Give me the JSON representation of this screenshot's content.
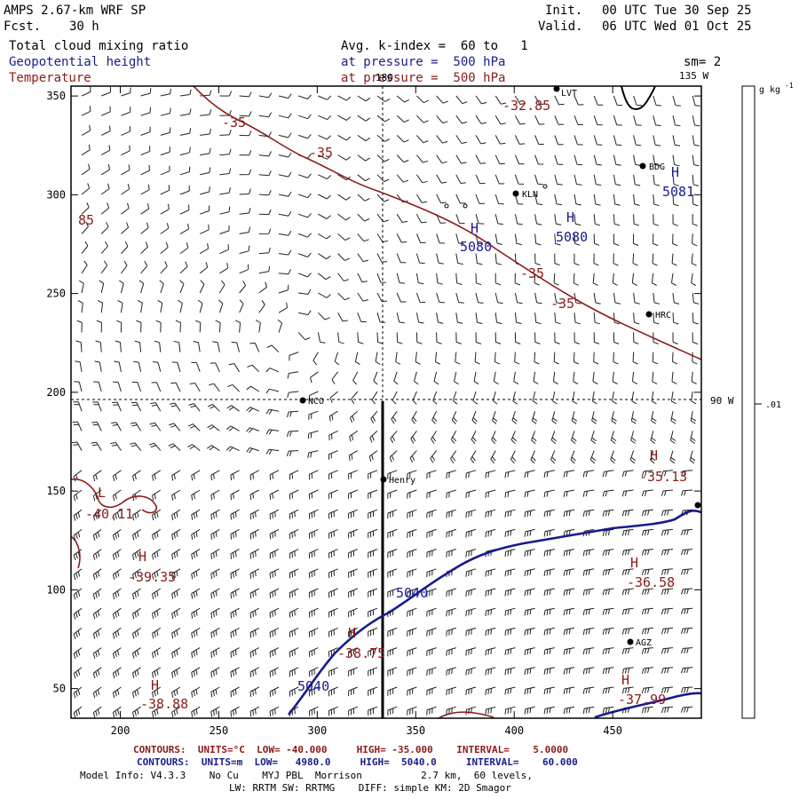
{
  "header": {
    "model_name": "AMPS 2.67-km WRF SP",
    "forecast_label": "Fcst.",
    "forecast_hours": "30 h",
    "init_label": "Init.",
    "init_time": "00 UTC Tue 30 Sep 25",
    "valid_label": "Valid.",
    "valid_time": "06 UTC Wed 01 Oct 25"
  },
  "fields": {
    "field1": "Total cloud mixing ratio",
    "field2": "Geopotential height",
    "field3": "Temperature",
    "avg_line": "Avg. k-index =  60 to   1",
    "pressure1": "at pressure =  500 hPa",
    "pressure2": "at pressure =  500 hPa",
    "smoothing": "sm= 2"
  },
  "axes": {
    "x_ticks": [
      "200",
      "250",
      "300",
      "350",
      "400",
      "450"
    ],
    "y_ticks": [
      "350",
      "300",
      "250",
      "200",
      "150",
      "100",
      "50"
    ]
  },
  "map_labels": {
    "lon_180": "180",
    "lon_135w": "135 W",
    "lon_90w": "90 W"
  },
  "stations": [
    {
      "name": "LVT"
    },
    {
      "name": "BDG"
    },
    {
      "name": "KLN"
    },
    {
      "name": "HRC"
    },
    {
      "name": "NCO"
    },
    {
      "name": "Henry"
    },
    {
      "name": "AGZ"
    }
  ],
  "height_labels": [
    {
      "marker": "H",
      "value": "5081"
    },
    {
      "marker": "H",
      "value": "5080"
    },
    {
      "marker": "H",
      "value": "5080"
    },
    {
      "contour": "5040"
    },
    {
      "contour": "5040"
    }
  ],
  "temp_labels": [
    {
      "value": "-32.85"
    },
    {
      "value": "-35"
    },
    {
      "value": "-35"
    },
    {
      "value": "-35"
    },
    {
      "value": "-35"
    },
    {
      "value": "85"
    },
    {
      "marker": "L",
      "value": "-40.11"
    },
    {
      "marker": "H",
      "value": "-39.35"
    },
    {
      "marker": "H",
      "value": "-38.75"
    },
    {
      "marker": "H",
      "value": "-38.88"
    },
    {
      "marker": "H",
      "value": "-35.13"
    },
    {
      "marker": "H",
      "value": "-36.58"
    },
    {
      "marker": "H",
      "value": "-37.99"
    }
  ],
  "colorbar": {
    "units": "g kg",
    "units_sup": "-1",
    "value": ".01"
  },
  "footer": {
    "temp_contours": "CONTOURS:  UNITS=°C  LOW= -40.000     HIGH= -35.000    INTERVAL=    5.0000",
    "height_contours": "CONTOURS:  UNITS=m  LOW=   4980.0     HIGH=  5040.0     INTERVAL=    60.000",
    "model_info": "Model Info: V4.3.3    No Cu    MYJ PBL  Morrison          2.7 km,  60 levels,",
    "model_info2": "LW: RRTM SW: RRTMG    DIFF: simple KM: 2D Smagor"
  },
  "colors": {
    "height": "#1a1a8c",
    "temperature": "#8c1a1a",
    "text": "#000000"
  }
}
